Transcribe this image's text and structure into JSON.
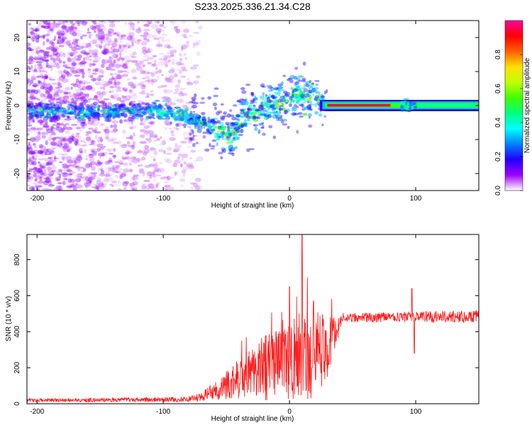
{
  "chart_data": [
    {
      "type": "heatmap",
      "title": "S233.2025.336.21.34.C28",
      "xlabel": "Height of straight line (km)",
      "ylabel": "Frequency (Hz)",
      "xlim": [
        -208,
        150
      ],
      "ylim": [
        -25,
        25
      ],
      "xticks": [
        -200,
        -100,
        0,
        100
      ],
      "yticks": [
        -20,
        -10,
        0,
        10,
        20
      ],
      "colorbar": {
        "label": "Normalized spectral amplitude",
        "range": [
          0,
          1
        ],
        "ticks": [
          "0.0",
          "0.2",
          "0.4",
          "0.6",
          "0.8"
        ],
        "colors": [
          "#ffffff",
          "#a000ff",
          "#2000ff",
          "#0080ff",
          "#00ffff",
          "#00ff80",
          "#40ff00",
          "#c0ff00",
          "#ffe000",
          "#ff6000",
          "#ff0000",
          "#ff00a0"
        ]
      },
      "ridge": [
        {
          "x": -208,
          "f": -1.5
        },
        {
          "x": -150,
          "f": -2
        },
        {
          "x": -110,
          "f": -1.5
        },
        {
          "x": -95,
          "f": -2.5
        },
        {
          "x": -75,
          "f": -4
        },
        {
          "x": -55,
          "f": -7
        },
        {
          "x": -45,
          "f": -9
        },
        {
          "x": -38,
          "f": -4
        },
        {
          "x": -30,
          "f": -2
        },
        {
          "x": -20,
          "f": 0
        },
        {
          "x": -10,
          "f": 1
        },
        {
          "x": 0,
          "f": 2.5
        },
        {
          "x": 10,
          "f": 3
        },
        {
          "x": 20,
          "f": 2
        },
        {
          "x": 28,
          "f": 0.2
        },
        {
          "x": 75,
          "f": 0
        },
        {
          "x": 95,
          "f": 0
        },
        {
          "x": 150,
          "f": 0.5
        }
      ],
      "tone": {
        "x_start": 28,
        "x_end": 150,
        "frequency": 0,
        "amplitude": 0.95
      }
    },
    {
      "type": "line",
      "title": "",
      "xlabel": "Height of straight line (km)",
      "ylabel": "SNR (10 * v/v)",
      "xlim": [
        -208,
        150
      ],
      "ylim": [
        0,
        940
      ],
      "xticks": [
        -200,
        -100,
        0,
        100
      ],
      "yticks": [
        0,
        200,
        400,
        600,
        800
      ],
      "series": [
        {
          "name": "SNR",
          "color": "#ff2020",
          "envelope": [
            {
              "x": -208,
              "base": 20,
              "spread": 10
            },
            {
              "x": -120,
              "base": 22,
              "spread": 12
            },
            {
              "x": -80,
              "base": 25,
              "spread": 15
            },
            {
              "x": -70,
              "base": 40,
              "spread": 25
            },
            {
              "x": -60,
              "base": 70,
              "spread": 50
            },
            {
              "x": -50,
              "base": 100,
              "spread": 80
            },
            {
              "x": -40,
              "base": 140,
              "spread": 110
            },
            {
              "x": -30,
              "base": 170,
              "spread": 140
            },
            {
              "x": -20,
              "base": 200,
              "spread": 180
            },
            {
              "x": -10,
              "base": 220,
              "spread": 210
            },
            {
              "x": 0,
              "base": 240,
              "spread": 230
            },
            {
              "x": 10,
              "base": 260,
              "spread": 260
            },
            {
              "x": 20,
              "base": 280,
              "spread": 240
            },
            {
              "x": 30,
              "base": 320,
              "spread": 180
            },
            {
              "x": 38,
              "base": 420,
              "spread": 80
            },
            {
              "x": 42,
              "base": 480,
              "spread": 25
            },
            {
              "x": 90,
              "base": 480,
              "spread": 30
            },
            {
              "x": 150,
              "base": 485,
              "spread": 35
            }
          ],
          "peaks": [
            {
              "x": 10,
              "value": 940
            },
            {
              "x": 0,
              "value": 650
            },
            {
              "x": 19,
              "value": 570
            },
            {
              "x": 97,
              "value": 640
            },
            {
              "x": 99,
              "value": 280
            }
          ]
        }
      ]
    }
  ]
}
